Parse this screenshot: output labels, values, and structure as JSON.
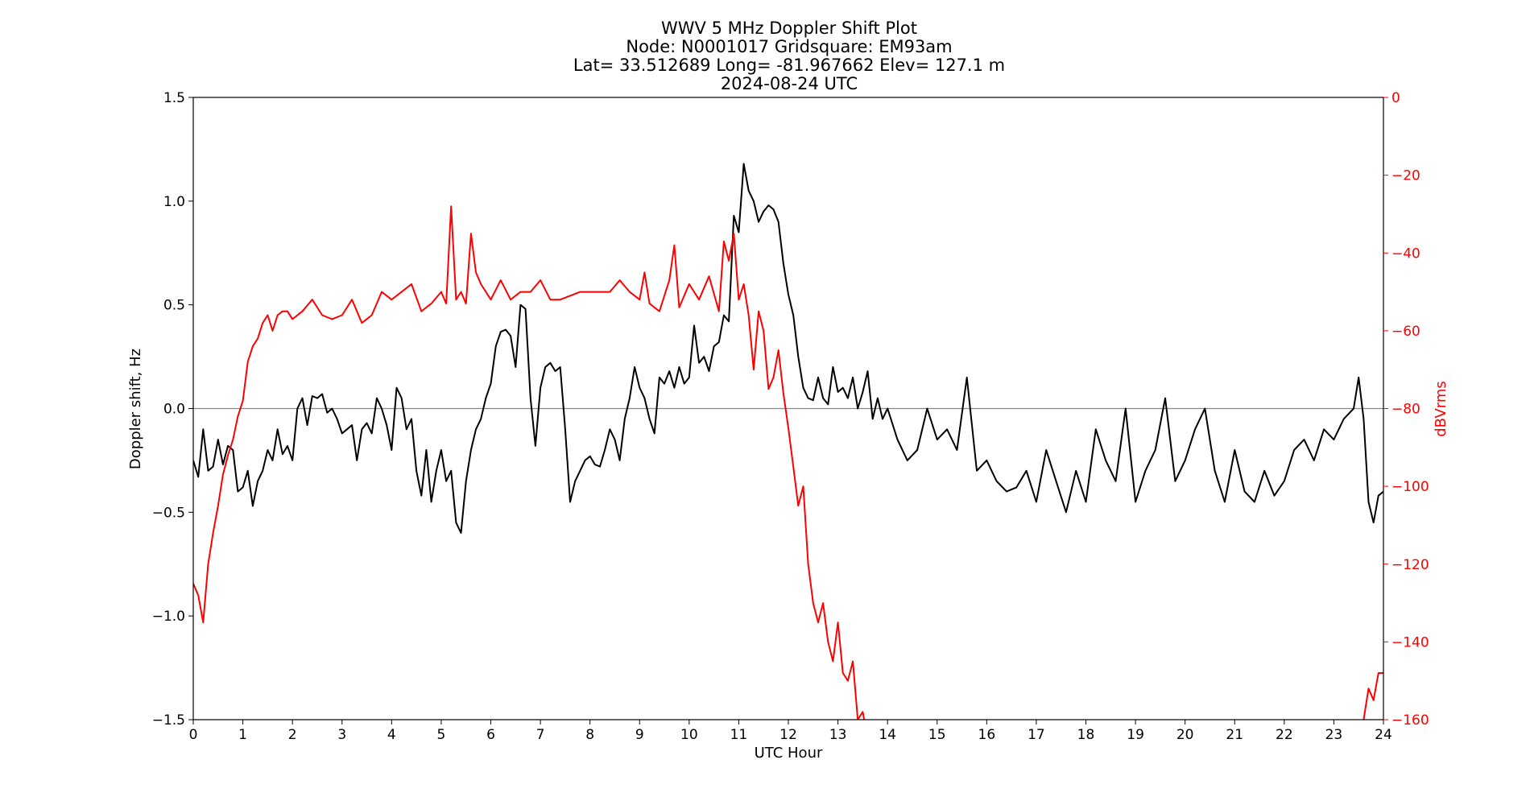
{
  "chart_data": {
    "type": "line",
    "title_lines": [
      "WWV 5 MHz Doppler Shift Plot",
      "Node:  N0001017     Gridsquare:  EM93am",
      "Lat= 33.512689    Long= -81.967662    Elev= 127.1 m",
      "2024-08-24  UTC"
    ],
    "xlabel": "UTC Hour",
    "ylabel": "Doppler shift, Hz",
    "ylabel_right": "dBVrms",
    "xlim": [
      0,
      24
    ],
    "ylim": [
      -1.5,
      1.5
    ],
    "ylim_right": [
      -160,
      0
    ],
    "x_ticks": [
      "0",
      "1",
      "2",
      "3",
      "4",
      "5",
      "6",
      "7",
      "8",
      "9",
      "10",
      "11",
      "12",
      "13",
      "14",
      "15",
      "16",
      "17",
      "18",
      "19",
      "20",
      "21",
      "22",
      "23",
      "24"
    ],
    "y_ticks": [
      "1.5",
      "1.0",
      "0.5",
      "0.0",
      "−0.5",
      "−1.0",
      "−1.5"
    ],
    "y_ticks_right": [
      "0",
      "−20",
      "−40",
      "−60",
      "−80",
      "−100",
      "−120",
      "−140",
      "−160"
    ],
    "zero_line": true,
    "series": [
      {
        "axis": "left",
        "color": "#000000",
        "x": [
          0,
          0.1,
          0.2,
          0.3,
          0.4,
          0.5,
          0.6,
          0.7,
          0.8,
          0.9,
          1.0,
          1.1,
          1.2,
          1.3,
          1.4,
          1.5,
          1.6,
          1.7,
          1.8,
          1.9,
          2.0,
          2.1,
          2.2,
          2.3,
          2.4,
          2.5,
          2.6,
          2.7,
          2.8,
          2.9,
          3.0,
          3.1,
          3.2,
          3.3,
          3.4,
          3.5,
          3.6,
          3.7,
          3.8,
          3.9,
          4.0,
          4.1,
          4.2,
          4.3,
          4.4,
          4.5,
          4.6,
          4.7,
          4.8,
          4.9,
          5.0,
          5.1,
          5.2,
          5.3,
          5.4,
          5.5,
          5.6,
          5.7,
          5.8,
          5.9,
          6.0,
          6.1,
          6.2,
          6.3,
          6.4,
          6.5,
          6.6,
          6.7,
          6.8,
          6.9,
          7.0,
          7.1,
          7.2,
          7.3,
          7.4,
          7.5,
          7.6,
          7.7,
          7.8,
          7.9,
          8.0,
          8.1,
          8.2,
          8.3,
          8.4,
          8.5,
          8.6,
          8.7,
          8.8,
          8.9,
          9.0,
          9.1,
          9.2,
          9.3,
          9.4,
          9.5,
          9.6,
          9.7,
          9.8,
          9.9,
          10.0,
          10.1,
          10.2,
          10.3,
          10.4,
          10.5,
          10.6,
          10.7,
          10.8,
          10.9,
          11.0,
          11.1,
          11.2,
          11.3,
          11.4,
          11.5,
          11.6,
          11.7,
          11.8,
          11.9,
          12.0,
          12.1,
          12.2,
          12.3,
          12.4,
          12.5,
          12.6,
          12.7,
          12.8,
          12.9,
          13.0,
          13.1,
          13.2,
          13.3,
          13.4,
          13.5,
          13.6,
          13.7,
          13.8,
          13.9,
          14.0,
          14.2,
          14.4,
          14.6,
          14.8,
          15.0,
          15.2,
          15.4,
          15.6,
          15.8,
          16.0,
          16.2,
          16.4,
          16.6,
          16.8,
          17.0,
          17.2,
          17.4,
          17.6,
          17.8,
          18.0,
          18.2,
          18.4,
          18.6,
          18.8,
          19.0,
          19.2,
          19.4,
          19.6,
          19.8,
          20.0,
          20.2,
          20.4,
          20.6,
          20.8,
          21.0,
          21.2,
          21.4,
          21.6,
          21.8,
          22.0,
          22.2,
          22.4,
          22.6,
          22.8,
          23.0,
          23.2,
          23.4,
          23.5,
          23.6,
          23.7,
          23.8,
          23.9,
          24.0
        ],
        "y": [
          -0.25,
          -0.33,
          -0.1,
          -0.3,
          -0.28,
          -0.15,
          -0.27,
          -0.18,
          -0.2,
          -0.4,
          -0.38,
          -0.3,
          -0.47,
          -0.35,
          -0.3,
          -0.2,
          -0.25,
          -0.1,
          -0.22,
          -0.18,
          -0.25,
          0.0,
          0.05,
          -0.08,
          0.06,
          0.05,
          0.07,
          -0.02,
          0.0,
          -0.05,
          -0.12,
          -0.1,
          -0.08,
          -0.25,
          -0.1,
          -0.07,
          -0.12,
          0.05,
          0.0,
          -0.08,
          -0.2,
          0.1,
          0.05,
          -0.1,
          -0.05,
          -0.3,
          -0.42,
          -0.2,
          -0.45,
          -0.3,
          -0.2,
          -0.35,
          -0.3,
          -0.55,
          -0.6,
          -0.35,
          -0.2,
          -0.1,
          -0.05,
          0.05,
          0.12,
          0.3,
          0.37,
          0.38,
          0.35,
          0.2,
          0.5,
          0.48,
          0.05,
          -0.18,
          0.1,
          0.2,
          0.22,
          0.18,
          0.2,
          -0.1,
          -0.45,
          -0.35,
          -0.3,
          -0.25,
          -0.23,
          -0.27,
          -0.28,
          -0.2,
          -0.1,
          -0.15,
          -0.25,
          -0.05,
          0.05,
          0.2,
          0.1,
          0.05,
          -0.05,
          -0.12,
          0.15,
          0.12,
          0.18,
          0.1,
          0.2,
          0.12,
          0.15,
          0.4,
          0.22,
          0.25,
          0.18,
          0.3,
          0.32,
          0.45,
          0.42,
          0.93,
          0.85,
          1.18,
          1.05,
          1.0,
          0.9,
          0.95,
          0.98,
          0.96,
          0.9,
          0.7,
          0.55,
          0.45,
          0.25,
          0.1,
          0.05,
          0.04,
          0.15,
          0.05,
          0.02,
          0.2,
          0.08,
          0.1,
          0.05,
          0.15,
          0.0,
          0.08,
          0.18,
          -0.05,
          0.05,
          -0.05,
          0.0,
          -0.15,
          -0.25,
          -0.2,
          0.0,
          -0.15,
          -0.1,
          -0.2,
          0.15,
          -0.3,
          -0.25,
          -0.35,
          -0.4,
          -0.38,
          -0.3,
          -0.45,
          -0.2,
          -0.35,
          -0.5,
          -0.3,
          -0.45,
          -0.1,
          -0.25,
          -0.35,
          0.0,
          -0.45,
          -0.3,
          -0.2,
          0.05,
          -0.35,
          -0.25,
          -0.1,
          0.0,
          -0.3,
          -0.45,
          -0.2,
          -0.4,
          -0.45,
          -0.3,
          -0.42,
          -0.35,
          -0.2,
          -0.15,
          -0.25,
          -0.1,
          -0.15,
          -0.05,
          0.0,
          0.15,
          -0.05,
          -0.45,
          -0.55,
          -0.42,
          -0.4
        ]
      },
      {
        "axis": "right",
        "color": "#ff0000",
        "x": [
          0,
          0.1,
          0.2,
          0.3,
          0.4,
          0.5,
          0.6,
          0.7,
          0.8,
          0.9,
          1.0,
          1.1,
          1.2,
          1.3,
          1.4,
          1.5,
          1.6,
          1.7,
          1.8,
          1.9,
          2.0,
          2.2,
          2.4,
          2.6,
          2.8,
          3.0,
          3.2,
          3.4,
          3.6,
          3.8,
          4.0,
          4.2,
          4.4,
          4.6,
          4.8,
          5.0,
          5.1,
          5.2,
          5.3,
          5.4,
          5.5,
          5.6,
          5.7,
          5.8,
          6.0,
          6.2,
          6.4,
          6.6,
          6.8,
          7.0,
          7.2,
          7.4,
          7.6,
          7.8,
          8.0,
          8.2,
          8.4,
          8.6,
          8.8,
          9.0,
          9.1,
          9.2,
          9.4,
          9.6,
          9.7,
          9.8,
          10.0,
          10.2,
          10.4,
          10.6,
          10.7,
          10.8,
          10.9,
          11.0,
          11.1,
          11.2,
          11.3,
          11.4,
          11.5,
          11.6,
          11.7,
          11.8,
          11.9,
          12.0,
          12.1,
          12.2,
          12.3,
          12.4,
          12.5,
          12.6,
          12.7,
          12.8,
          12.9,
          13.0,
          13.1,
          13.2,
          13.3,
          13.4,
          13.5,
          13.6
        ],
        "y": [
          -125,
          -128,
          -135,
          -120,
          -112,
          -105,
          -97,
          -92,
          -88,
          -82,
          -78,
          -68,
          -64,
          -62,
          -58,
          -56,
          -60,
          -56,
          -55,
          -55,
          -57,
          -55,
          -52,
          -56,
          -57,
          -56,
          -52,
          -58,
          -56,
          -50,
          -52,
          -50,
          -48,
          -55,
          -53,
          -50,
          -53,
          -28,
          -52,
          -50,
          -53,
          -35,
          -45,
          -48,
          -52,
          -47,
          -52,
          -50,
          -50,
          -47,
          -52,
          -52,
          -51,
          -50,
          -50,
          -50,
          -50,
          -47,
          -50,
          -52,
          -45,
          -53,
          -55,
          -47,
          -38,
          -54,
          -48,
          -52,
          -46,
          -55,
          -37,
          -42,
          -35,
          -52,
          -48,
          -56,
          -70,
          -55,
          -60,
          -75,
          -72,
          -65,
          -76,
          -85,
          -95,
          -105,
          -100,
          -120,
          -130,
          -135,
          -130,
          -140,
          -145,
          -135,
          -148,
          -150,
          -145,
          -160,
          -158,
          -165
        ]
      },
      {
        "axis": "right",
        "color": "#ff0000",
        "x": [
          23.6,
          23.7,
          23.8,
          23.9,
          24.0
        ],
        "y": [
          -160,
          -152,
          -155,
          -148,
          -148
        ]
      }
    ]
  }
}
